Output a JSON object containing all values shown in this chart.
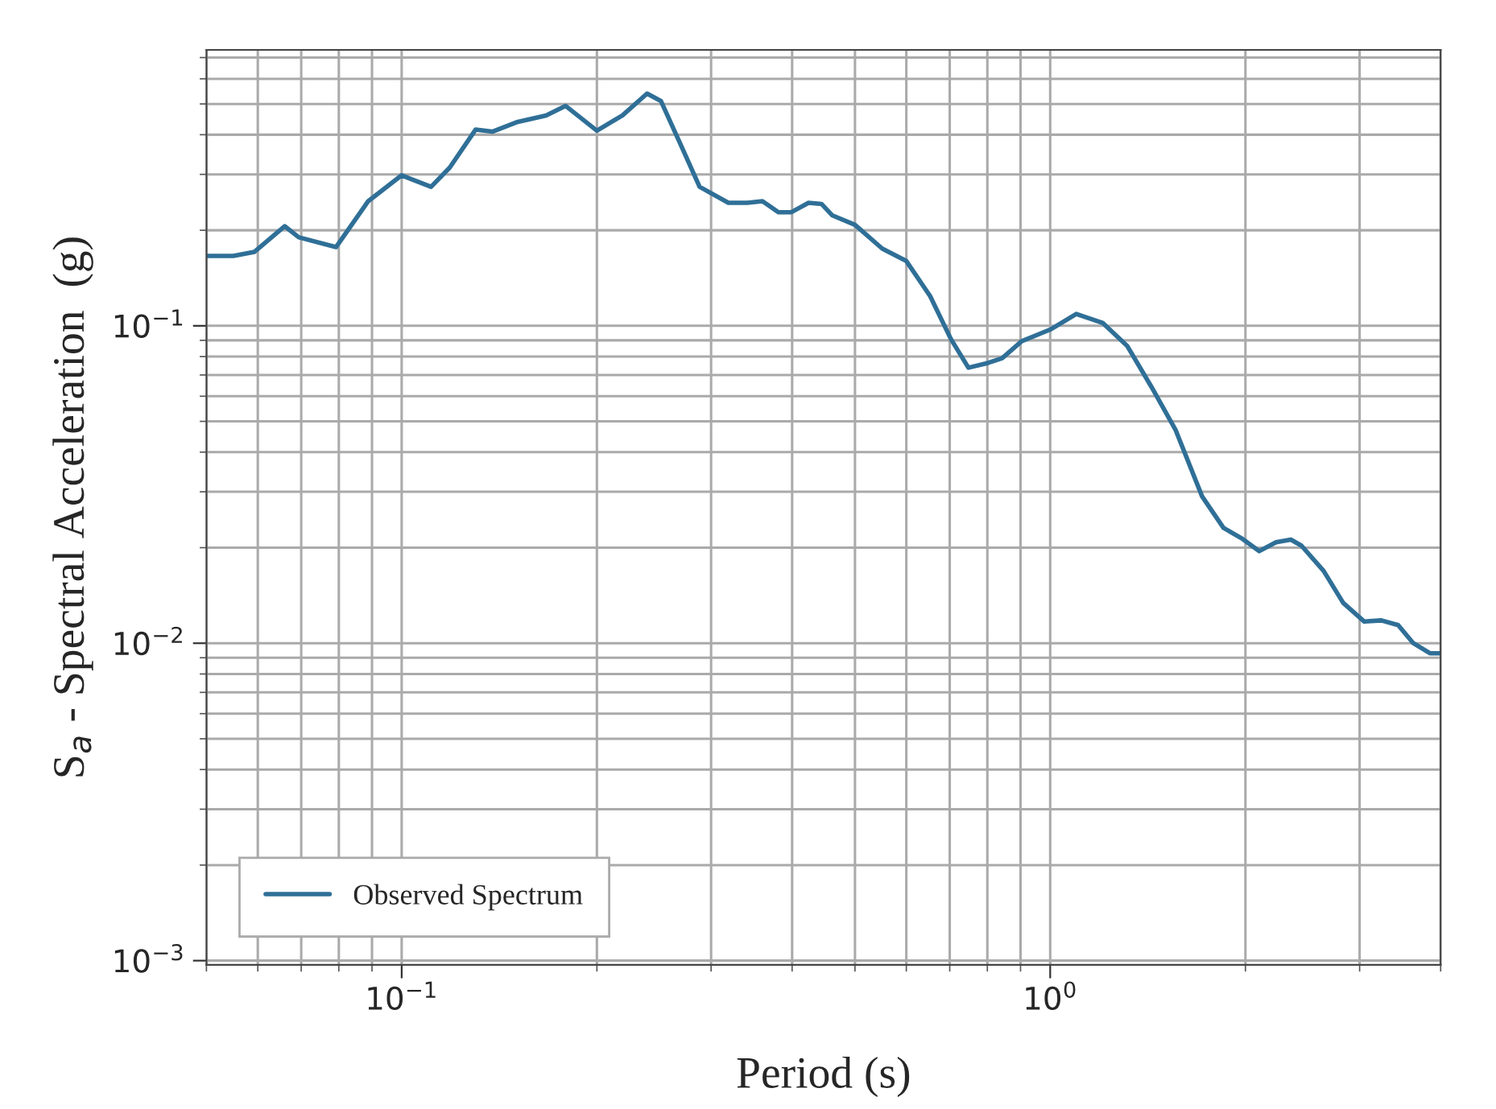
{
  "chart_data": {
    "type": "line",
    "xlabel": "Period (s)",
    "ylabel": "S$_{a}$ - Spectral Acceleration  (g)",
    "log": "xy",
    "grid": true,
    "legend": "bottom left",
    "xlim": [
      0.05,
      4
    ],
    "ylim": [
      0.00097,
      0.74
    ],
    "xticks": [
      {
        "value": 0.1,
        "label": "10$^{−1}$"
      },
      {
        "value": 1,
        "label": "10$^{0}$"
      }
    ],
    "yticks": [
      {
        "value": 0.001,
        "label": "10$^{−3}$"
      },
      {
        "value": 0.01,
        "label": "10$^{−2}$"
      },
      {
        "value": 0.1,
        "label": "10$^{−1}$"
      }
    ],
    "series": [
      {
        "name": "Observed Spectrum",
        "color": "#2f6f97",
        "x": [
          0.05,
          0.055,
          0.0593,
          0.066,
          0.0694,
          0.0792,
          0.0888,
          0.1,
          0.111,
          0.1186,
          0.13,
          0.138,
          0.151,
          0.167,
          0.179,
          0.2,
          0.219,
          0.239,
          0.251,
          0.269,
          0.288,
          0.319,
          0.341,
          0.36,
          0.381,
          0.399,
          0.424,
          0.444,
          0.461,
          0.5,
          0.551,
          0.6,
          0.653,
          0.703,
          0.748,
          0.802,
          0.843,
          0.904,
          1.0,
          1.097,
          1.206,
          1.314,
          1.432,
          1.56,
          1.715,
          1.85,
          1.98,
          2.1,
          2.23,
          2.35,
          2.44,
          2.64,
          2.83,
          3.05,
          3.24,
          3.44,
          3.63,
          3.85,
          4.0
        ],
        "values": [
          0.166,
          0.166,
          0.171,
          0.206,
          0.19,
          0.177,
          0.247,
          0.298,
          0.274,
          0.315,
          0.415,
          0.409,
          0.439,
          0.46,
          0.493,
          0.412,
          0.46,
          0.539,
          0.511,
          0.374,
          0.274,
          0.244,
          0.244,
          0.247,
          0.228,
          0.228,
          0.244,
          0.242,
          0.223,
          0.208,
          0.175,
          0.16,
          0.124,
          0.0908,
          0.0738,
          0.0764,
          0.079,
          0.0895,
          0.0973,
          0.109,
          0.102,
          0.0865,
          0.0643,
          0.0471,
          0.029,
          0.0231,
          0.0213,
          0.0195,
          0.0208,
          0.0212,
          0.0203,
          0.0169,
          0.0134,
          0.0117,
          0.0118,
          0.0114,
          0.01,
          0.0093,
          0.0093
        ]
      }
    ]
  }
}
